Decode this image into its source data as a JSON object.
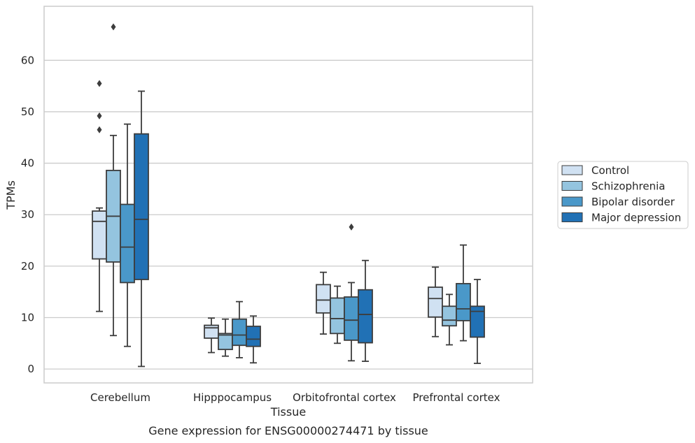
{
  "chart_data": {
    "type": "box",
    "title": "",
    "caption": "Gene expression for ENSG00000274471 by tissue",
    "xlabel": "Tissue",
    "ylabel": "TPMs",
    "ylim": [
      -2.7,
      70.5
    ],
    "yticks": [
      0,
      10,
      20,
      30,
      40,
      50,
      60
    ],
    "grid": "horizontal",
    "legend_position": "right",
    "categories": [
      "Cerebellum",
      "Hipppocampus",
      "Orbitofrontal cortex",
      "Prefrontal cortex"
    ],
    "series": [
      {
        "name": "Control",
        "color": "#d0e1f2",
        "boxes": [
          {
            "whislo": 11.2,
            "q1": 21.4,
            "med": 28.7,
            "q3": 30.7,
            "whishi": 31.3,
            "fliers": [
              55.5,
              49.2,
              46.5
            ]
          },
          {
            "whislo": 3.2,
            "q1": 6.0,
            "med": 8.0,
            "q3": 8.5,
            "whishi": 9.9,
            "fliers": []
          },
          {
            "whislo": 6.8,
            "q1": 10.9,
            "med": 13.4,
            "q3": 16.4,
            "whishi": 18.8,
            "fliers": []
          },
          {
            "whislo": 6.3,
            "q1": 10.1,
            "med": 13.7,
            "q3": 15.9,
            "whishi": 19.8,
            "fliers": []
          }
        ]
      },
      {
        "name": "Schizophrenia",
        "color": "#94c4df",
        "boxes": [
          {
            "whislo": 6.5,
            "q1": 20.8,
            "med": 29.7,
            "q3": 38.6,
            "whishi": 45.4,
            "fliers": [
              66.5
            ]
          },
          {
            "whislo": 2.5,
            "q1": 3.8,
            "med": 6.6,
            "q3": 6.9,
            "whishi": 9.7,
            "fliers": []
          },
          {
            "whislo": 5.0,
            "q1": 6.9,
            "med": 9.8,
            "q3": 13.8,
            "whishi": 16.1,
            "fliers": []
          },
          {
            "whislo": 4.7,
            "q1": 8.4,
            "med": 9.5,
            "q3": 12.2,
            "whishi": 14.5,
            "fliers": []
          }
        ]
      },
      {
        "name": "Bipolar disorder",
        "color": "#4a98c9",
        "boxes": [
          {
            "whislo": 4.4,
            "q1": 16.8,
            "med": 23.7,
            "q3": 32.0,
            "whishi": 47.6,
            "fliers": []
          },
          {
            "whislo": 2.2,
            "q1": 4.6,
            "med": 6.6,
            "q3": 9.7,
            "whishi": 13.1,
            "fliers": []
          },
          {
            "whislo": 1.6,
            "q1": 5.6,
            "med": 9.5,
            "q3": 14.0,
            "whishi": 16.8,
            "fliers": [
              27.6
            ]
          },
          {
            "whislo": 5.5,
            "q1": 9.4,
            "med": 11.7,
            "q3": 16.6,
            "whishi": 24.1,
            "fliers": []
          }
        ]
      },
      {
        "name": "Major depression",
        "color": "#2171b5",
        "boxes": [
          {
            "whislo": 0.5,
            "q1": 17.4,
            "med": 29.1,
            "q3": 45.7,
            "whishi": 54.0,
            "fliers": []
          },
          {
            "whislo": 1.2,
            "q1": 4.4,
            "med": 5.8,
            "q3": 8.3,
            "whishi": 10.3,
            "fliers": []
          },
          {
            "whislo": 1.5,
            "q1": 5.1,
            "med": 10.6,
            "q3": 15.4,
            "whishi": 21.1,
            "fliers": []
          },
          {
            "whislo": 1.1,
            "q1": 6.2,
            "med": 11.2,
            "q3": 12.2,
            "whishi": 17.4,
            "fliers": []
          }
        ]
      }
    ]
  }
}
